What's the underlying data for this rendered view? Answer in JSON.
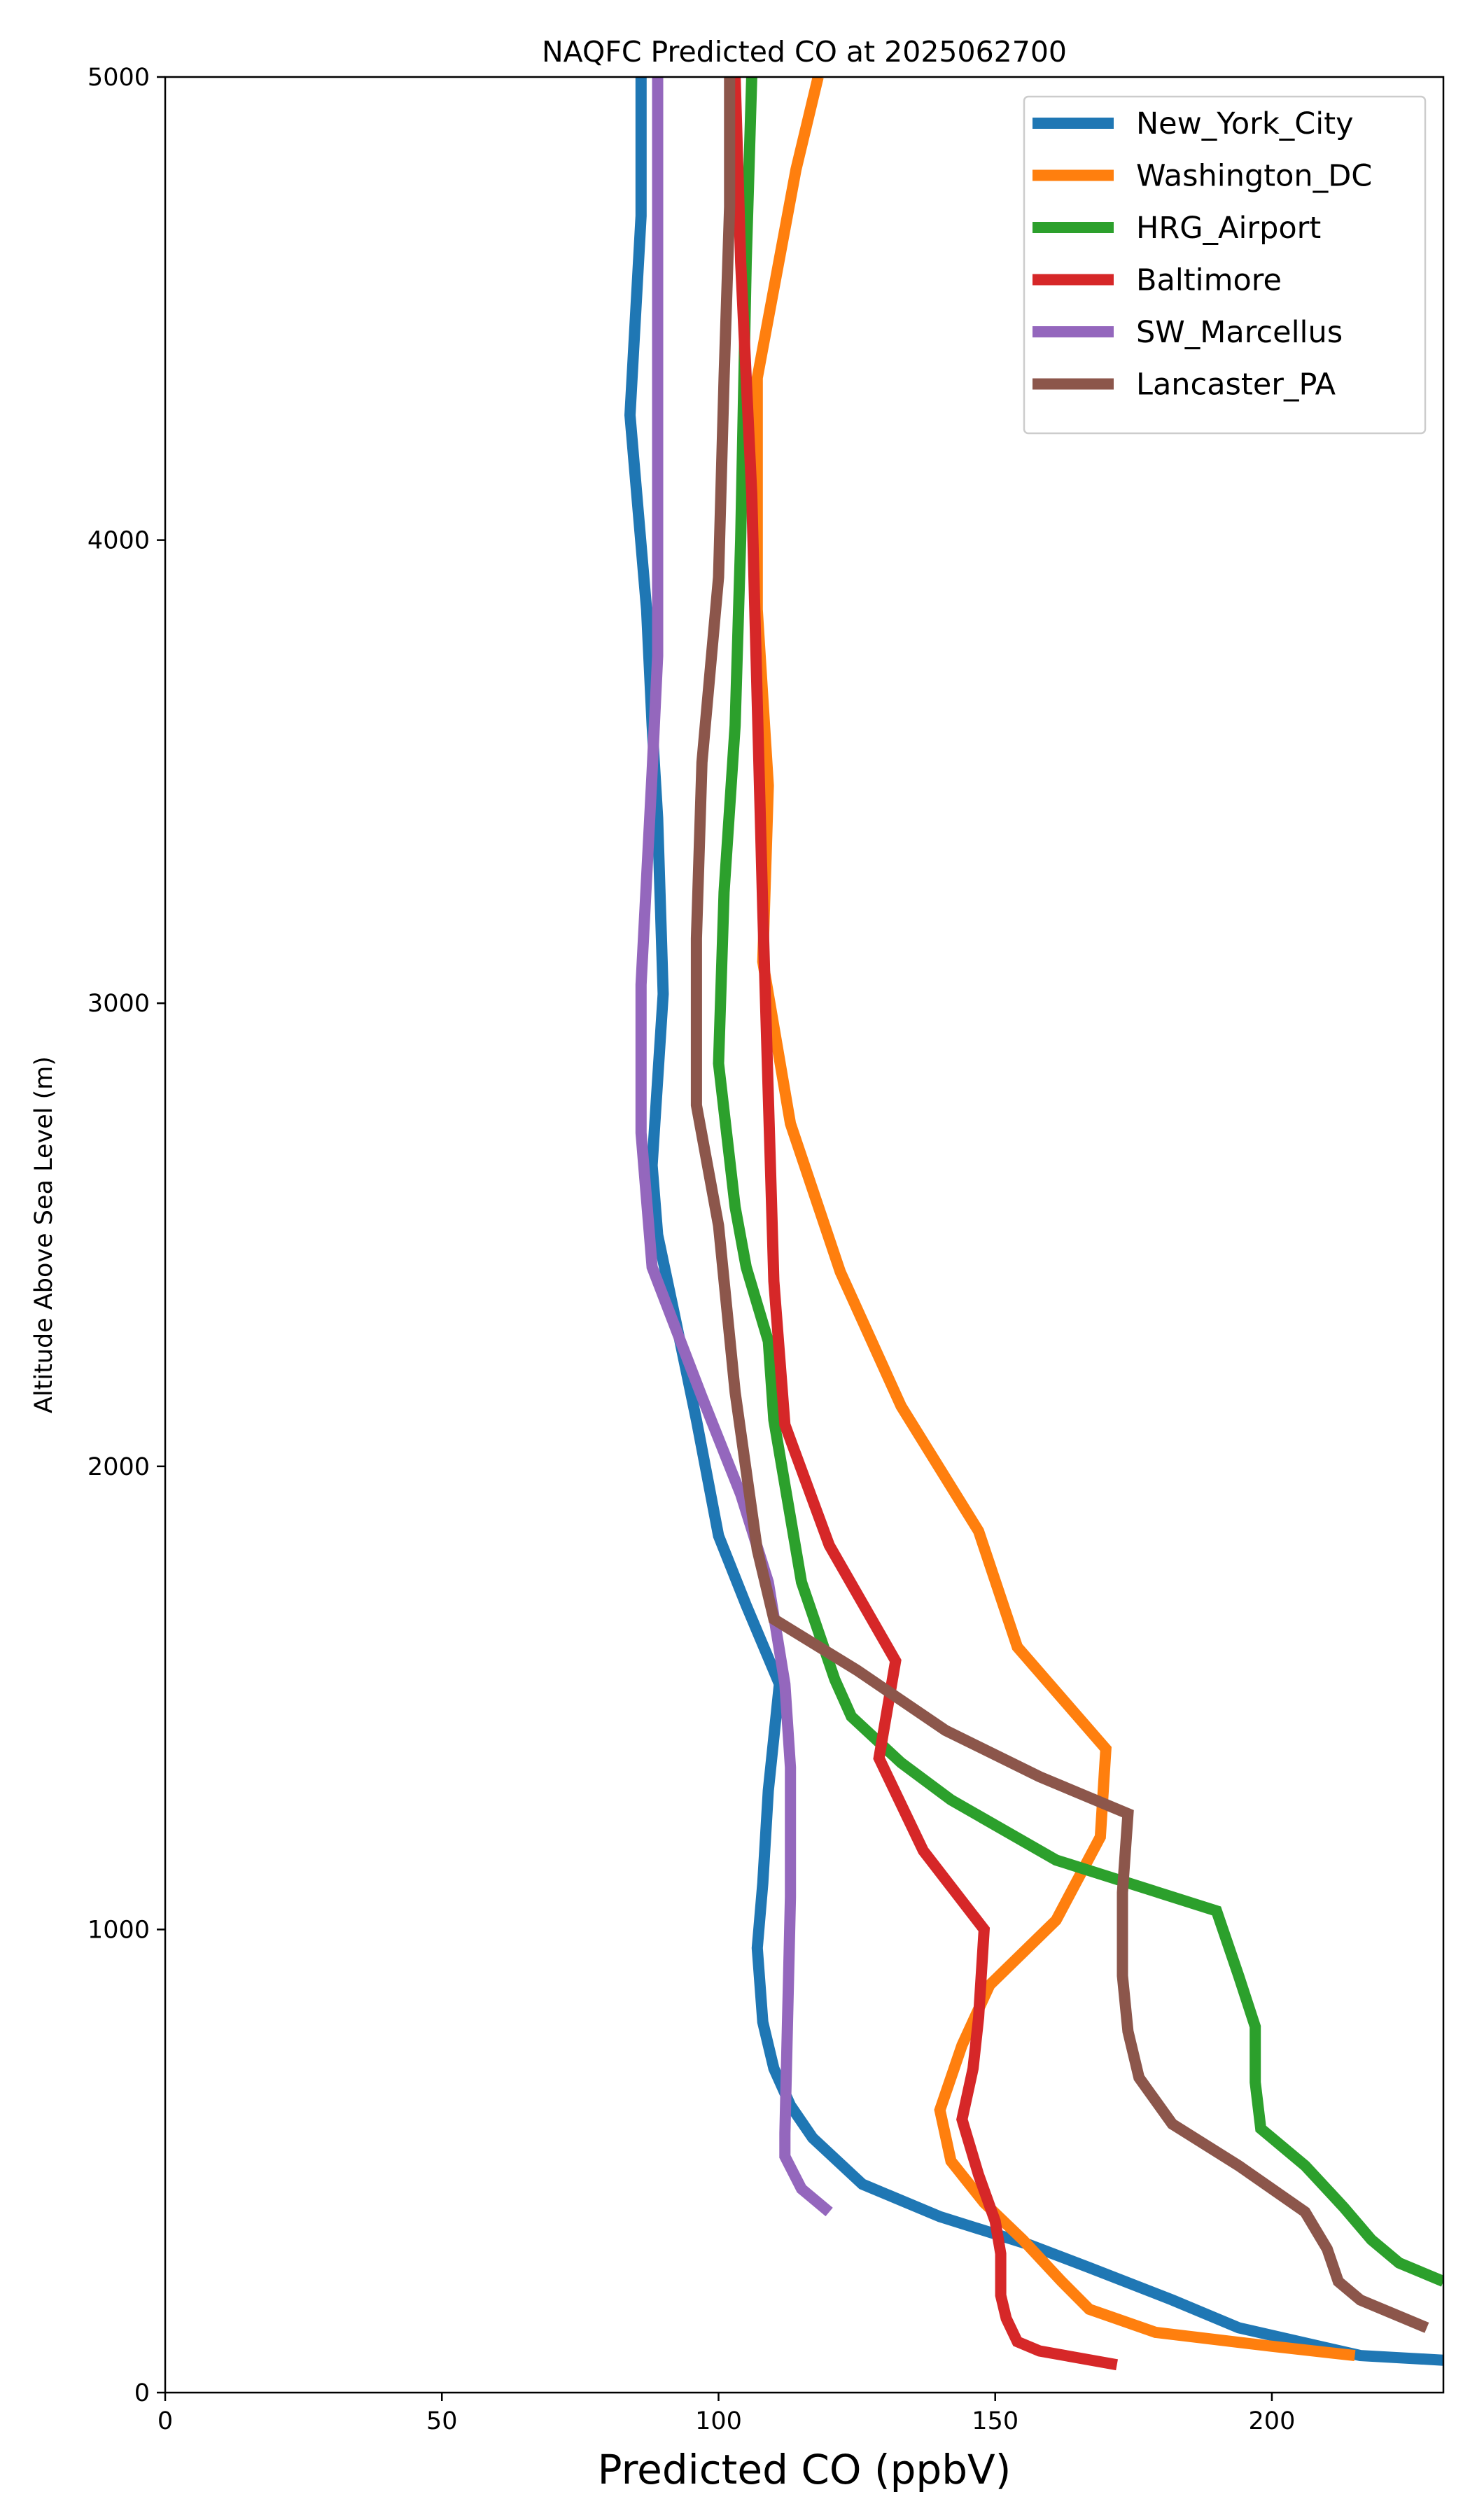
{
  "chart_data": {
    "type": "line",
    "title": "NAQFC Predicted CO at 2025062700",
    "xlabel": "Predicted CO (ppbV)",
    "ylabel": "Altitude Above Sea Level (m)",
    "xlim": [
      0,
      231
    ],
    "ylim": [
      0,
      5000
    ],
    "xticks": [
      0,
      50,
      100,
      150,
      200
    ],
    "yticks": [
      0,
      1000,
      2000,
      3000,
      4000,
      5000
    ],
    "grid": false,
    "legend_position": "top-right",
    "series": [
      {
        "name": "New_York_City",
        "color": "#1f77b4",
        "points": [
          [
            231,
            70
          ],
          [
            216,
            80
          ],
          [
            194,
            140
          ],
          [
            182,
            200
          ],
          [
            167,
            270
          ],
          [
            156,
            320
          ],
          [
            140,
            380
          ],
          [
            126,
            450
          ],
          [
            117,
            550
          ],
          [
            113,
            620
          ],
          [
            110,
            700
          ],
          [
            108,
            800
          ],
          [
            107,
            960
          ],
          [
            108,
            1100
          ],
          [
            109,
            1300
          ],
          [
            111,
            1530
          ],
          [
            105,
            1700
          ],
          [
            100,
            1850
          ],
          [
            96,
            2100
          ],
          [
            92,
            2330
          ],
          [
            89,
            2500
          ],
          [
            88,
            2650
          ],
          [
            90,
            3020
          ],
          [
            89,
            3400
          ],
          [
            88,
            3600
          ],
          [
            87,
            3850
          ],
          [
            84,
            4270
          ],
          [
            86,
            4700
          ],
          [
            86,
            5000
          ]
        ]
      },
      {
        "name": "Washington_DC",
        "color": "#ff7f0e",
        "points": [
          [
            215,
            80
          ],
          [
            200,
            100
          ],
          [
            179,
            130
          ],
          [
            167,
            180
          ],
          [
            162,
            240
          ],
          [
            155,
            330
          ],
          [
            148,
            410
          ],
          [
            142,
            500
          ],
          [
            140,
            610
          ],
          [
            144,
            750
          ],
          [
            149,
            880
          ],
          [
            161,
            1020
          ],
          [
            169,
            1200
          ],
          [
            170,
            1390
          ],
          [
            154,
            1610
          ],
          [
            147,
            1860
          ],
          [
            133,
            2130
          ],
          [
            122,
            2420
          ],
          [
            113,
            2740
          ],
          [
            108,
            3090
          ],
          [
            109,
            3470
          ],
          [
            107,
            3850
          ],
          [
            107,
            4350
          ],
          [
            114,
            4800
          ],
          [
            118,
            5000
          ]
        ]
      },
      {
        "name": "HRG_Airport",
        "color": "#2ca02c",
        "points": [
          [
            231,
            240
          ],
          [
            223,
            280
          ],
          [
            218,
            330
          ],
          [
            213,
            400
          ],
          [
            206,
            490
          ],
          [
            198,
            570
          ],
          [
            197,
            670
          ],
          [
            197,
            790
          ],
          [
            194,
            900
          ],
          [
            190,
            1040
          ],
          [
            161,
            1150
          ],
          [
            142,
            1280
          ],
          [
            133,
            1360
          ],
          [
            124,
            1460
          ],
          [
            121,
            1540
          ],
          [
            115,
            1750
          ],
          [
            112,
            1960
          ],
          [
            110,
            2100
          ],
          [
            109,
            2270
          ],
          [
            105,
            2430
          ],
          [
            103,
            2560
          ],
          [
            100,
            2870
          ],
          [
            101,
            3240
          ],
          [
            103,
            3600
          ],
          [
            104,
            4000
          ],
          [
            105,
            4600
          ],
          [
            106,
            5000
          ]
        ]
      },
      {
        "name": "Baltimore",
        "color": "#d62728",
        "points": [
          [
            172,
            60
          ],
          [
            158,
            90
          ],
          [
            154,
            110
          ],
          [
            152,
            160
          ],
          [
            151,
            210
          ],
          [
            151,
            300
          ],
          [
            150,
            370
          ],
          [
            147,
            470
          ],
          [
            144,
            590
          ],
          [
            146,
            700
          ],
          [
            147,
            810
          ],
          [
            148,
            1000
          ],
          [
            137,
            1170
          ],
          [
            129,
            1370
          ],
          [
            132,
            1580
          ],
          [
            120,
            1830
          ],
          [
            112,
            2090
          ],
          [
            110,
            2400
          ],
          [
            108,
            3200
          ],
          [
            106,
            4100
          ],
          [
            104,
            4600
          ],
          [
            103,
            5000
          ]
        ]
      },
      {
        "name": "SW_Marcellus",
        "color": "#9467bd",
        "points": [
          [
            120,
            390
          ],
          [
            115,
            440
          ],
          [
            112,
            510
          ],
          [
            112,
            560
          ],
          [
            113,
            1070
          ],
          [
            113,
            1350
          ],
          [
            112,
            1530
          ],
          [
            109,
            1750
          ],
          [
            104,
            1940
          ],
          [
            97,
            2150
          ],
          [
            88,
            2430
          ],
          [
            86,
            2720
          ],
          [
            86,
            3040
          ],
          [
            88,
            3500
          ],
          [
            89,
            3750
          ],
          [
            89,
            4300
          ],
          [
            89,
            5000
          ]
        ]
      },
      {
        "name": "Lancaster_PA",
        "color": "#8c564b",
        "points": [
          [
            228,
            140
          ],
          [
            216,
            200
          ],
          [
            212,
            240
          ],
          [
            210,
            310
          ],
          [
            206,
            390
          ],
          [
            194,
            490
          ],
          [
            182,
            580
          ],
          [
            176,
            680
          ],
          [
            174,
            780
          ],
          [
            173,
            900
          ],
          [
            173,
            1080
          ],
          [
            174,
            1250
          ],
          [
            158,
            1330
          ],
          [
            141,
            1430
          ],
          [
            125,
            1560
          ],
          [
            110,
            1670
          ],
          [
            107,
            1820
          ],
          [
            103,
            2160
          ],
          [
            100,
            2520
          ],
          [
            96,
            2780
          ],
          [
            96,
            3140
          ],
          [
            97,
            3520
          ],
          [
            100,
            3920
          ],
          [
            101,
            4350
          ],
          [
            102,
            4720
          ],
          [
            102,
            5000
          ]
        ]
      }
    ]
  }
}
